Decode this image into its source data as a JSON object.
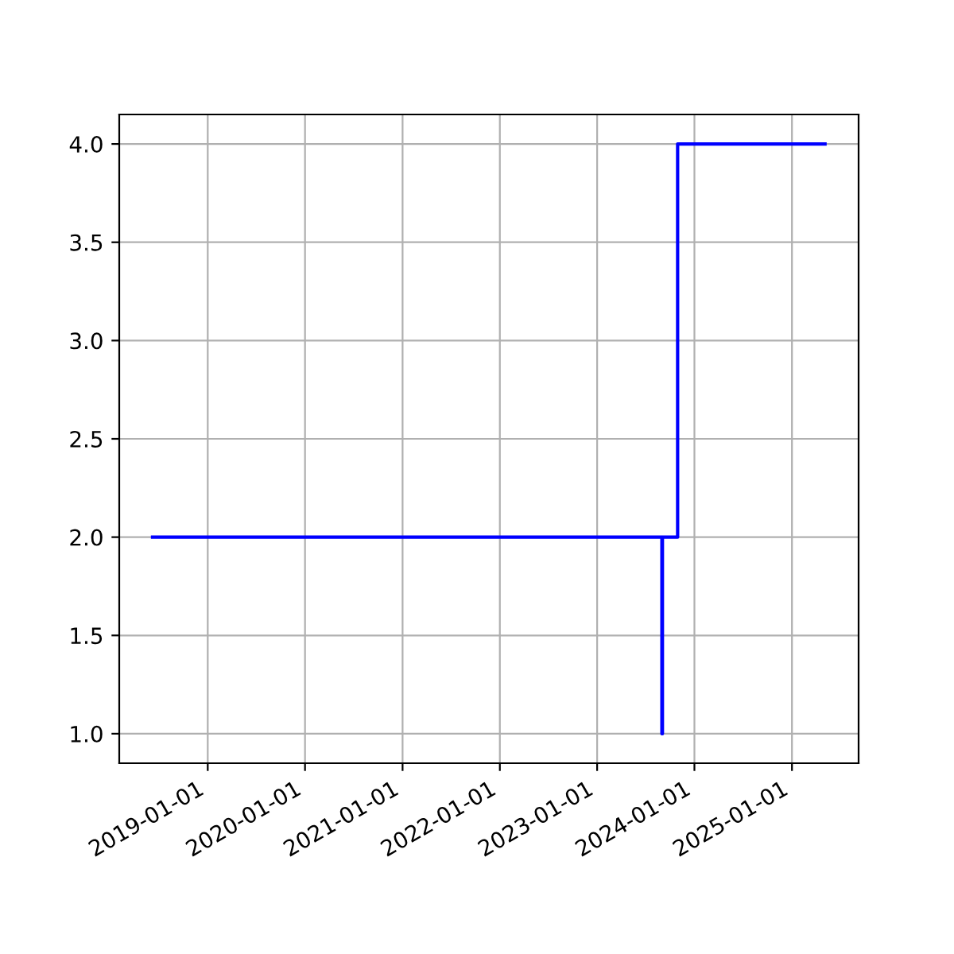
{
  "chart_data": {
    "type": "step",
    "x": [
      "2018-06-08",
      "2023-09-01",
      "2023-09-03",
      "2023-10-30",
      "2025-05-05"
    ],
    "series": [
      {
        "color": "#0000ff",
        "values": [
          2,
          1,
          2,
          4,
          4
        ]
      }
    ],
    "xlim": [
      "2018-02-03",
      "2025-09-08"
    ],
    "xticks": [
      {
        "value": "2019-01-01",
        "label": "2019-01-01"
      },
      {
        "value": "2020-01-01",
        "label": "2020-01-01"
      },
      {
        "value": "2021-01-01",
        "label": "2021-01-01"
      },
      {
        "value": "2022-01-01",
        "label": "2022-01-01"
      },
      {
        "value": "2023-01-01",
        "label": "2023-01-01"
      },
      {
        "value": "2024-01-01",
        "label": "2024-01-01"
      },
      {
        "value": "2025-01-01",
        "label": "2025-01-01"
      }
    ],
    "ylim": [
      0.85,
      4.15
    ],
    "yticks": [
      {
        "value": 1,
        "label": "1.0"
      },
      {
        "value": 1.5,
        "label": "1.5"
      },
      {
        "value": 2,
        "label": "2.0"
      },
      {
        "value": 2.5,
        "label": "2.5"
      },
      {
        "value": 3,
        "label": "3.0"
      },
      {
        "value": 3.5,
        "label": "3.5"
      },
      {
        "value": 4,
        "label": "4.0"
      }
    ],
    "grid": true,
    "line_style": "solid"
  }
}
